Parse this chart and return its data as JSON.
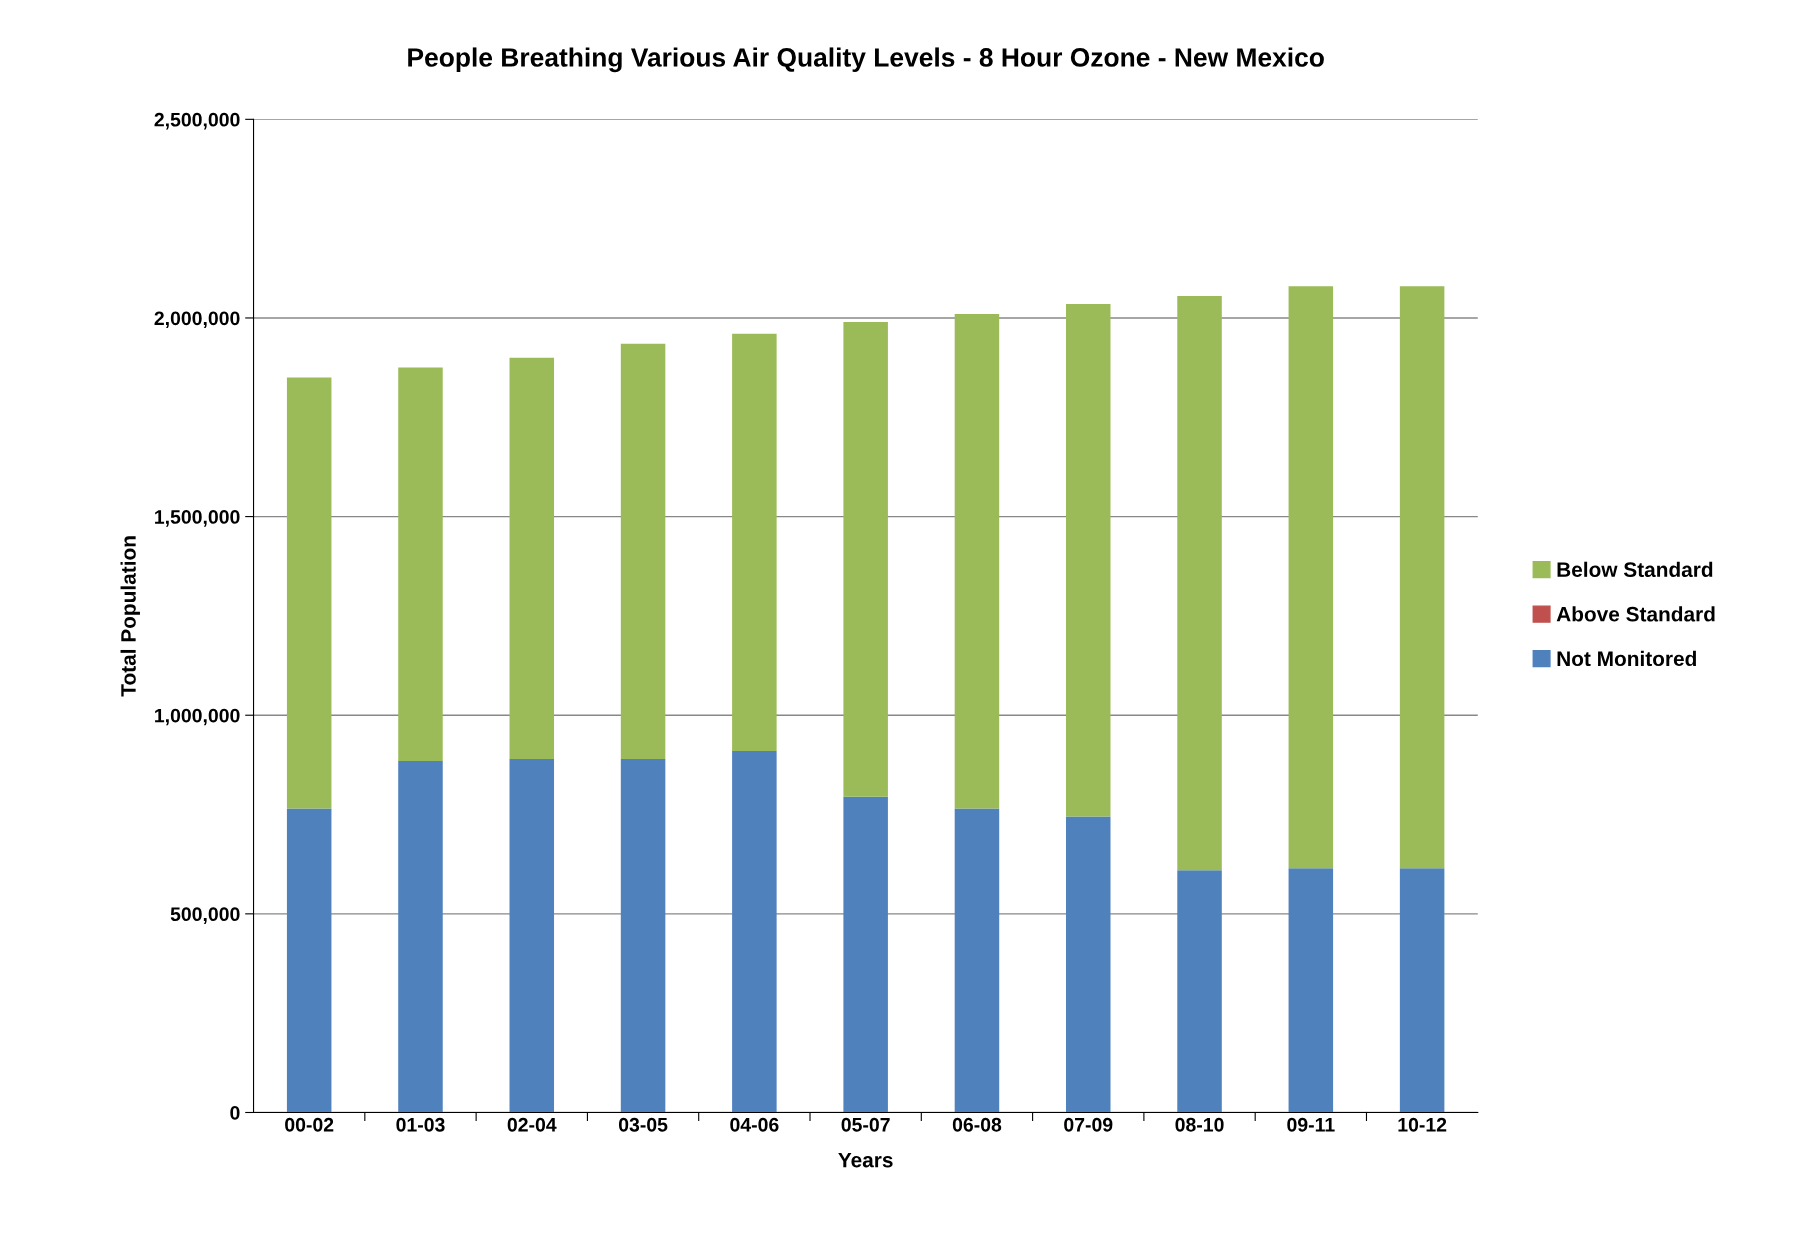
{
  "chart_data": {
    "type": "bar",
    "title": "People Breathing Various Air Quality Levels - 8 Hour Ozone - New Mexico",
    "xlabel": "Years",
    "ylabel": "Total Population",
    "categories": [
      "00-02",
      "01-03",
      "02-04",
      "03-05",
      "04-06",
      "05-07",
      "06-08",
      "07-09",
      "08-10",
      "09-11",
      "10-12"
    ],
    "stacked": true,
    "series": [
      {
        "name": "Not Monitored",
        "color": "#4f81bd",
        "values": [
          765000,
          885000,
          890000,
          890000,
          910000,
          795000,
          765000,
          745000,
          610000,
          615000,
          615000
        ]
      },
      {
        "name": "Above Standard",
        "color": "#c0504d",
        "values": [
          0,
          0,
          0,
          0,
          0,
          0,
          0,
          0,
          0,
          0,
          0
        ]
      },
      {
        "name": "Below Standard",
        "color": "#9bbb59",
        "values": [
          1085000,
          990000,
          1010000,
          1045000,
          1050000,
          1195000,
          1245000,
          1290000,
          1445000,
          1465000,
          1465000
        ]
      }
    ],
    "ylim": [
      0,
      2500000
    ],
    "yticks": [
      0,
      {
        "value": 500000,
        "label": "500,000"
      },
      {
        "value": 1000000,
        "label": "1,000,000"
      },
      {
        "value": 1500000,
        "label": "1,500,000"
      },
      {
        "value": 2000000,
        "label": "2,000,000"
      },
      {
        "value": 2500000,
        "label": "2,500,000"
      }
    ],
    "grid": "y",
    "legend": "right"
  }
}
